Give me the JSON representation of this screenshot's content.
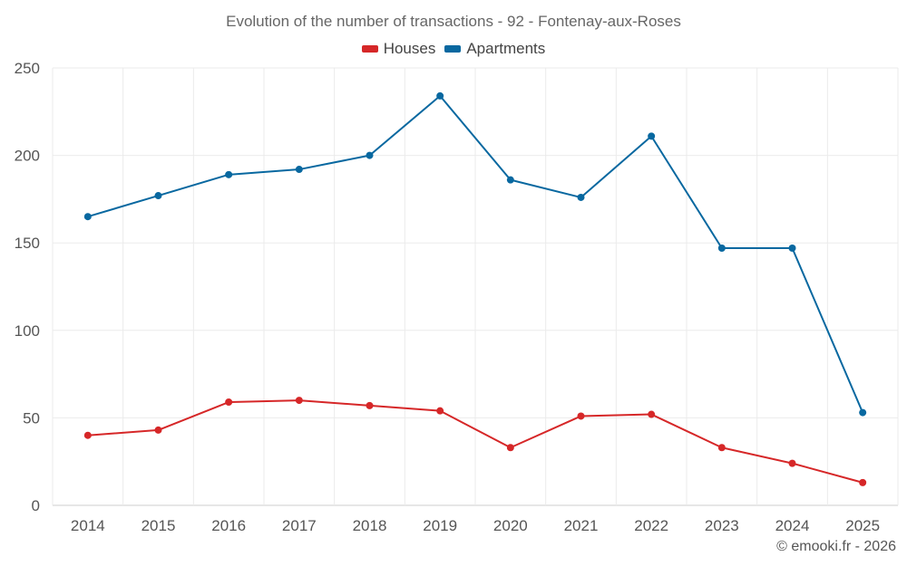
{
  "chart_data": {
    "type": "line",
    "title": "Evolution of the number of transactions - 92 - Fontenay-aux-Roses",
    "xlabel": "",
    "ylabel": "",
    "categories": [
      "2014",
      "2015",
      "2016",
      "2017",
      "2018",
      "2019",
      "2020",
      "2021",
      "2022",
      "2023",
      "2024",
      "2025"
    ],
    "ylim": [
      0,
      250
    ],
    "yticks": [
      0,
      50,
      100,
      150,
      200,
      250
    ],
    "grid": true,
    "legend_position": "top-center",
    "series": [
      {
        "name": "Houses",
        "color": "#d62728",
        "values": [
          40,
          43,
          59,
          60,
          57,
          54,
          33,
          51,
          52,
          33,
          24,
          13
        ]
      },
      {
        "name": "Apartments",
        "color": "#0868a0",
        "values": [
          165,
          177,
          189,
          192,
          200,
          234,
          186,
          176,
          211,
          147,
          147,
          53
        ]
      }
    ]
  },
  "footer": {
    "credit": "© emooki.fr - 2026"
  }
}
